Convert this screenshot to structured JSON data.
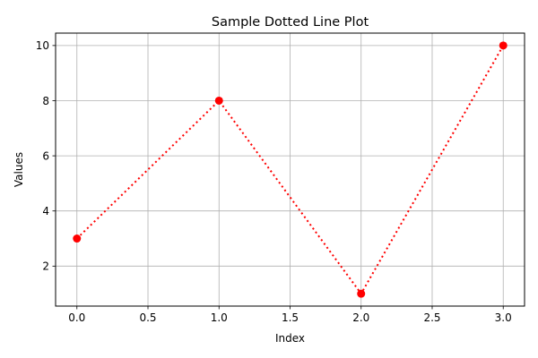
{
  "chart_data": {
    "type": "line",
    "title": "Sample Dotted Line Plot",
    "xlabel": "Index",
    "ylabel": "Values",
    "x": [
      0,
      1,
      2,
      3
    ],
    "series": [
      {
        "name": "Values",
        "values": [
          3,
          8,
          1,
          10
        ],
        "color": "#ff0000",
        "linestyle": "dotted",
        "marker": "o"
      }
    ],
    "xlim": [
      -0.15,
      3.15
    ],
    "ylim": [
      0.55,
      10.45
    ],
    "xticks": [
      "0.0",
      "0.5",
      "1.0",
      "1.5",
      "2.0",
      "2.5",
      "3.0"
    ],
    "yticks": [
      "2",
      "4",
      "6",
      "8",
      "10"
    ],
    "grid": true,
    "legend": false
  },
  "colors": {
    "line": "#ff0000",
    "grid": "#b0b0b0",
    "axes": "#000000"
  }
}
